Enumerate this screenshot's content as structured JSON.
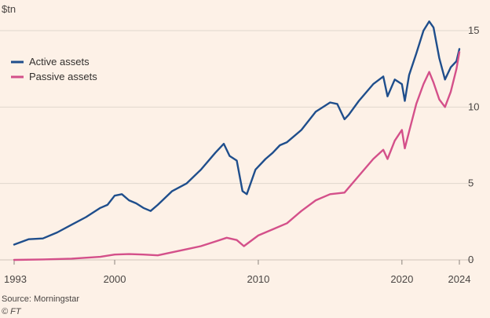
{
  "chart_data": {
    "type": "line",
    "title": "",
    "ylabel": "$tn",
    "xlabel": "",
    "xlim": [
      1993,
      2024
    ],
    "ylim": [
      0,
      15
    ],
    "xticks": [
      {
        "value": 1993,
        "label": "1993"
      },
      {
        "value": 2000,
        "label": "2000"
      },
      {
        "value": 2010,
        "label": "2010"
      },
      {
        "value": 2020,
        "label": "2020"
      },
      {
        "value": 2024,
        "label": "2024"
      }
    ],
    "yticks": [
      {
        "value": 0,
        "label": "0"
      },
      {
        "value": 5,
        "label": "5"
      },
      {
        "value": 10,
        "label": "10"
      },
      {
        "value": 15,
        "label": "15"
      }
    ],
    "legend_position": "top-left",
    "series": [
      {
        "name": "Active assets",
        "color": "#1f4e8c",
        "x": [
          1993.0,
          1994.0,
          1995.0,
          1996.0,
          1997.0,
          1998.0,
          1999.0,
          1999.5,
          2000.0,
          2000.5,
          2001.0,
          2001.5,
          2002.0,
          2002.5,
          2003.0,
          2004.0,
          2005.0,
          2006.0,
          2007.0,
          2007.6,
          2008.0,
          2008.5,
          2008.9,
          2009.2,
          2009.8,
          2010.5,
          2011.0,
          2011.5,
          2012.0,
          2013.0,
          2014.0,
          2015.0,
          2015.5,
          2016.0,
          2016.3,
          2017.0,
          2018.0,
          2018.7,
          2019.0,
          2019.5,
          2020.0,
          2020.2,
          2020.5,
          2021.0,
          2021.5,
          2021.9,
          2022.2,
          2022.6,
          2023.0,
          2023.4,
          2023.8,
          2024.0
        ],
        "y": [
          1.0,
          1.35,
          1.4,
          1.8,
          2.3,
          2.8,
          3.4,
          3.6,
          4.2,
          4.3,
          3.9,
          3.7,
          3.4,
          3.2,
          3.6,
          4.5,
          5.0,
          5.9,
          7.0,
          7.6,
          6.8,
          6.5,
          4.5,
          4.3,
          5.9,
          6.6,
          7.0,
          7.5,
          7.7,
          8.5,
          9.7,
          10.3,
          10.2,
          9.2,
          9.5,
          10.4,
          11.5,
          12.0,
          10.7,
          11.8,
          11.5,
          10.4,
          12.1,
          13.5,
          15.0,
          15.6,
          15.2,
          13.2,
          11.8,
          12.6,
          13.0,
          13.8
        ]
      },
      {
        "name": "Passive assets",
        "color": "#d4508a",
        "x": [
          1993.0,
          1995.0,
          1997.0,
          1999.0,
          2000.0,
          2001.0,
          2002.0,
          2003.0,
          2004.0,
          2005.0,
          2006.0,
          2007.0,
          2007.8,
          2008.5,
          2009.0,
          2010.0,
          2011.0,
          2012.0,
          2013.0,
          2014.0,
          2015.0,
          2016.0,
          2017.0,
          2018.0,
          2018.7,
          2019.0,
          2019.5,
          2020.0,
          2020.2,
          2020.5,
          2021.0,
          2021.5,
          2021.9,
          2022.2,
          2022.6,
          2023.0,
          2023.4,
          2023.8,
          2024.0
        ],
        "y": [
          0.0,
          0.03,
          0.08,
          0.2,
          0.35,
          0.38,
          0.35,
          0.3,
          0.5,
          0.7,
          0.9,
          1.2,
          1.45,
          1.3,
          0.9,
          1.6,
          2.0,
          2.4,
          3.2,
          3.9,
          4.3,
          4.4,
          5.5,
          6.6,
          7.2,
          6.6,
          7.8,
          8.5,
          7.3,
          8.4,
          10.2,
          11.5,
          12.3,
          11.6,
          10.5,
          10.0,
          11.0,
          12.5,
          13.6
        ]
      }
    ],
    "source": "Source: Morningstar",
    "copyright": "© FT"
  }
}
